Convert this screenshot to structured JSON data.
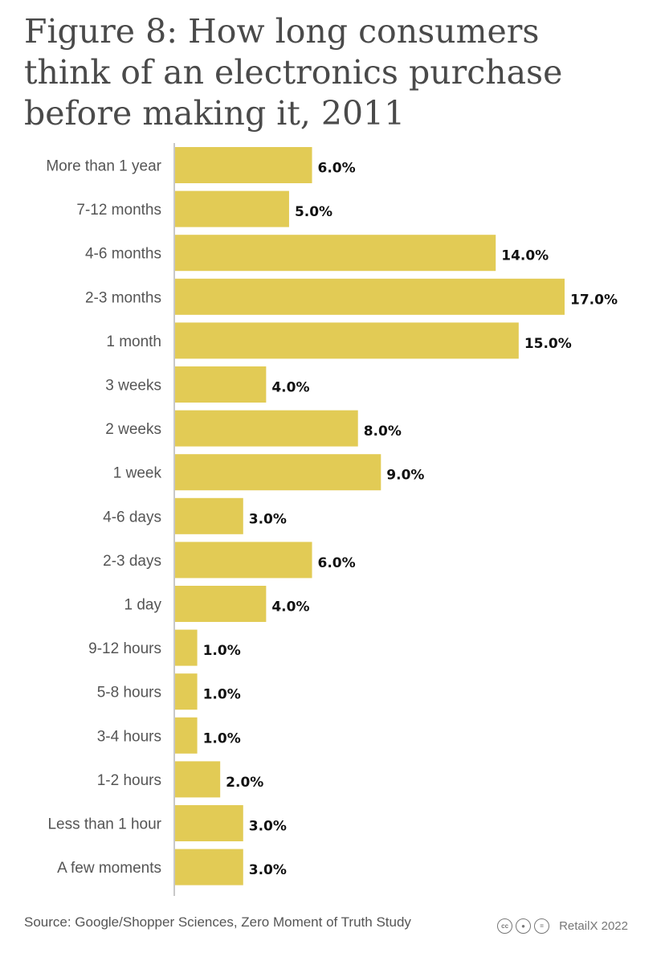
{
  "title": "Figure 8: How long consumers think of an electronics purchase before making it, 2011",
  "source": "Source: Google/Shopper Sciences, Zero Moment of Truth Study",
  "credit": "RetailX 2022",
  "icons": [
    "creative-commons-icon",
    "attribution-icon",
    "no-derivatives-icon"
  ],
  "colors": {
    "bar": "#e2cb55",
    "axis": "#c8c8c8"
  },
  "chart_data": {
    "type": "bar",
    "orientation": "horizontal",
    "categories": [
      "More than 1 year",
      "7-12 months",
      "4-6 months",
      "2-3 months",
      "1 month",
      "3 weeks",
      "2 weeks",
      "1 week",
      "4-6 days",
      "2-3 days",
      "1 day",
      "9-12 hours",
      "5-8 hours",
      "3-4 hours",
      "1-2 hours",
      "Less than 1 hour",
      "A few moments"
    ],
    "values": [
      6.0,
      5.0,
      14.0,
      17.0,
      15.0,
      4.0,
      8.0,
      9.0,
      3.0,
      6.0,
      4.0,
      1.0,
      1.0,
      1.0,
      2.0,
      3.0,
      3.0
    ],
    "value_labels": [
      "6.0%",
      "5.0%",
      "14.0%",
      "17.0%",
      "15.0%",
      "4.0%",
      "8.0%",
      "9.0%",
      "3.0%",
      "6.0%",
      "4.0%",
      "1.0%",
      "1.0%",
      "1.0%",
      "2.0%",
      "3.0%",
      "3.0%"
    ],
    "title": "Figure 8: How long consumers think of an electronics purchase before making it, 2011",
    "xlabel": "",
    "ylabel": "",
    "xlim": [
      0,
      17
    ],
    "grid": false,
    "legend": "none"
  }
}
